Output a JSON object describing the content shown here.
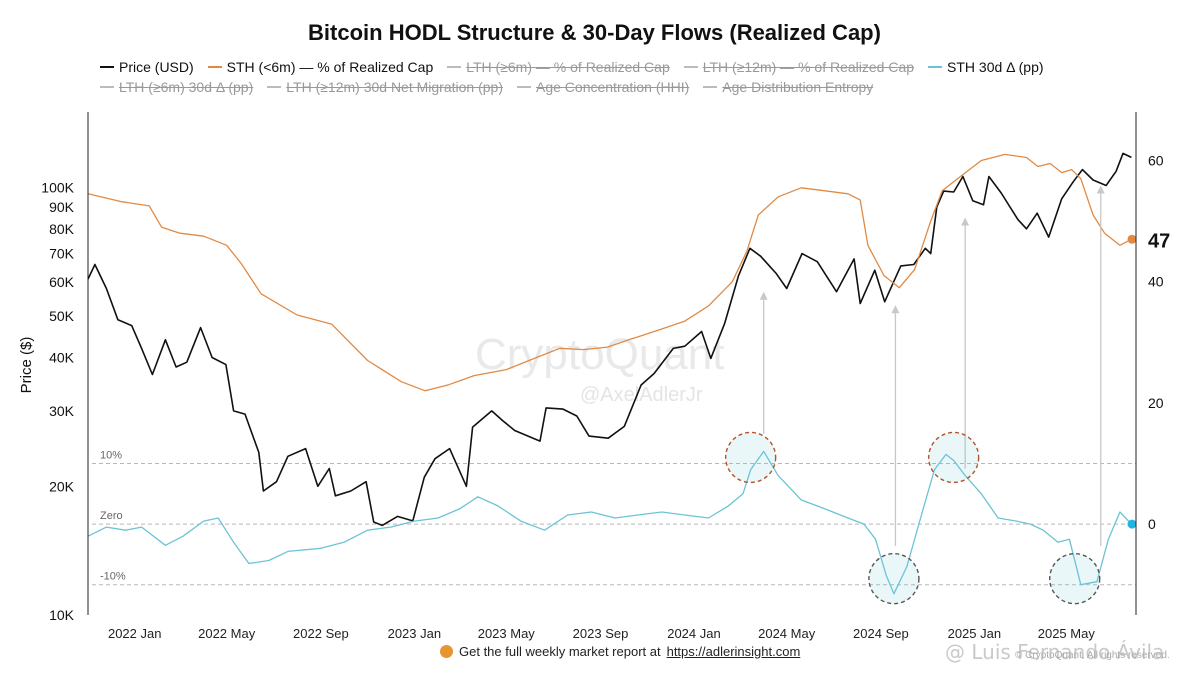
{
  "chart_data": {
    "type": "line",
    "title": "Bitcoin HODL Structure & 30-Day Flows (Realized Cap)",
    "xlabel": "",
    "ylabel_left": "Price ($)",
    "ylabel_right": "",
    "x_ticks": [
      "2022 Jan",
      "2022 May",
      "2022 Sep",
      "2023 Jan",
      "2023 May",
      "2023 Sep",
      "2024 Jan",
      "2024 May",
      "2024 Sep",
      "2025 Jan",
      "2025 May"
    ],
    "x_range": [
      "2021-11-01",
      "2025-07-31"
    ],
    "y_left_scale": "log",
    "y_left_range": [
      10000,
      150000
    ],
    "y_left_ticks": [
      {
        "value": 10000,
        "label": "10K"
      },
      {
        "value": 20000,
        "label": "20K"
      },
      {
        "value": 30000,
        "label": "30K"
      },
      {
        "value": 40000,
        "label": "40K"
      },
      {
        "value": 50000,
        "label": "50K"
      },
      {
        "value": 60000,
        "label": "60K"
      },
      {
        "value": 70000,
        "label": "70K"
      },
      {
        "value": 80000,
        "label": "80K"
      },
      {
        "value": 90000,
        "label": "90K"
      },
      {
        "value": 100000,
        "label": "100K"
      }
    ],
    "y_right_range": [
      -15,
      68
    ],
    "y_right_ticks": [
      {
        "value": 0,
        "label": "0"
      },
      {
        "value": 20,
        "label": "20"
      },
      {
        "value": 40,
        "label": "40"
      },
      {
        "value": 60,
        "label": "60"
      }
    ],
    "reference_lines": [
      {
        "value": 10,
        "label": "10%"
      },
      {
        "value": 0,
        "label": "Zero"
      },
      {
        "value": -10,
        "label": "-10%"
      }
    ],
    "legend": [
      {
        "name": "Price (USD)",
        "color": "#111111",
        "visible": true
      },
      {
        "name": "STH (<6m) — % of Realized Cap",
        "color": "#e08a45",
        "visible": true
      },
      {
        "name": "LTH (≥6m) — % of Realized Cap",
        "color": "#999999",
        "visible": false
      },
      {
        "name": "LTH (≥12m) — % of Realized Cap",
        "color": "#999999",
        "visible": false
      },
      {
        "name": "STH 30d Δ (pp)",
        "color": "#6cc3d5",
        "visible": true
      },
      {
        "name": "LTH (≥6m) 30d Δ (pp)",
        "color": "#999999",
        "visible": false
      },
      {
        "name": "LTH (≥12m) 30d Net Migration (pp)",
        "color": "#999999",
        "visible": false
      },
      {
        "name": "Age Concentration (HHI)",
        "color": "#999999",
        "visible": false
      },
      {
        "name": "Age Distribution Entropy",
        "color": "#999999",
        "visible": false
      }
    ],
    "last_value_label": "47",
    "series": [
      {
        "name": "Price (USD)",
        "axis": "left",
        "x": [
          "2021-11-01",
          "2021-11-10",
          "2021-11-25",
          "2021-12-10",
          "2021-12-28",
          "2022-01-10",
          "2022-01-24",
          "2022-02-10",
          "2022-02-24",
          "2022-03-10",
          "2022-03-28",
          "2022-04-12",
          "2022-04-30",
          "2022-05-10",
          "2022-05-25",
          "2022-06-12",
          "2022-06-18",
          "2022-07-05",
          "2022-07-20",
          "2022-08-12",
          "2022-08-28",
          "2022-09-12",
          "2022-09-20",
          "2022-10-10",
          "2022-10-30",
          "2022-11-09",
          "2022-11-20",
          "2022-12-10",
          "2022-12-30",
          "2023-01-14",
          "2023-01-28",
          "2023-02-16",
          "2023-03-10",
          "2023-03-18",
          "2023-04-12",
          "2023-04-26",
          "2023-05-12",
          "2023-06-14",
          "2023-06-22",
          "2023-07-14",
          "2023-08-01",
          "2023-08-17",
          "2023-09-11",
          "2023-10-02",
          "2023-10-24",
          "2023-11-10",
          "2023-12-05",
          "2023-12-20",
          "2024-01-11",
          "2024-01-23",
          "2024-02-10",
          "2024-02-28",
          "2024-03-14",
          "2024-03-28",
          "2024-04-17",
          "2024-05-01",
          "2024-05-21",
          "2024-06-10",
          "2024-07-05",
          "2024-07-28",
          "2024-08-05",
          "2024-08-24",
          "2024-09-06",
          "2024-09-27",
          "2024-10-14",
          "2024-10-29",
          "2024-11-05",
          "2024-11-13",
          "2024-11-22",
          "2024-12-05",
          "2024-12-17",
          "2024-12-30",
          "2025-01-13",
          "2025-01-20",
          "2025-02-05",
          "2025-02-27",
          "2025-03-10",
          "2025-03-24",
          "2025-04-08",
          "2025-04-25",
          "2025-05-10",
          "2025-05-22",
          "2025-06-05",
          "2025-06-22",
          "2025-07-05",
          "2025-07-14",
          "2025-07-25"
        ],
        "values": [
          61000,
          66000,
          58000,
          49000,
          47500,
          42000,
          36500,
          44000,
          38000,
          39000,
          47000,
          40000,
          38500,
          30000,
          29500,
          24000,
          19500,
          20500,
          23500,
          24500,
          20000,
          22000,
          19000,
          19500,
          20500,
          16500,
          16200,
          17000,
          16600,
          21000,
          23200,
          24500,
          20000,
          27500,
          30000,
          28500,
          27000,
          25500,
          30500,
          30300,
          29200,
          26200,
          25900,
          27600,
          34500,
          36700,
          42000,
          42500,
          46000,
          39800,
          48000,
          62000,
          72000,
          69000,
          63000,
          58000,
          70000,
          67000,
          57000,
          68000,
          53500,
          64000,
          54000,
          65500,
          66000,
          72000,
          70000,
          90000,
          98000,
          97500,
          106000,
          93000,
          91000,
          106000,
          97000,
          84000,
          80000,
          87000,
          76500,
          94000,
          103000,
          110000,
          104000,
          101000,
          109000,
          120000,
          117500
        ]
      },
      {
        "name": "STH (<6m) — % of Realized Cap",
        "axis": "right",
        "x": [
          "2021-11-01",
          "2021-12-15",
          "2022-01-20",
          "2022-02-05",
          "2022-03-01",
          "2022-04-01",
          "2022-05-01",
          "2022-05-20",
          "2022-06-15",
          "2022-08-01",
          "2022-09-15",
          "2022-11-01",
          "2022-12-15",
          "2023-01-15",
          "2023-02-15",
          "2023-03-20",
          "2023-05-01",
          "2023-06-10",
          "2023-07-10",
          "2023-08-10",
          "2023-09-10",
          "2023-10-10",
          "2023-11-15",
          "2023-12-20",
          "2024-01-20",
          "2024-02-20",
          "2024-03-10",
          "2024-03-25",
          "2024-04-20",
          "2024-05-20",
          "2024-06-20",
          "2024-07-20",
          "2024-08-05",
          "2024-08-15",
          "2024-09-05",
          "2024-09-25",
          "2024-10-15",
          "2024-11-05",
          "2024-11-20",
          "2024-12-10",
          "2025-01-10",
          "2025-02-10",
          "2025-03-10",
          "2025-03-25",
          "2025-04-10",
          "2025-04-25",
          "2025-05-08",
          "2025-05-20",
          "2025-06-05",
          "2025-06-20",
          "2025-07-10",
          "2025-07-25"
        ],
        "values": [
          54.5,
          53.2,
          52.5,
          49.0,
          48.0,
          47.5,
          46.0,
          43.0,
          38.0,
          34.5,
          33.0,
          27.0,
          23.5,
          22.0,
          23.0,
          24.5,
          25.5,
          27.5,
          29.0,
          28.8,
          29.2,
          30.5,
          32.0,
          33.5,
          36.0,
          40.0,
          45.0,
          51.0,
          54.0,
          55.5,
          55.0,
          54.5,
          53.5,
          46.0,
          41.0,
          39.0,
          42.0,
          50.0,
          55.0,
          57.0,
          60.0,
          61.0,
          60.5,
          59.0,
          59.5,
          58.0,
          58.5,
          57.0,
          51.0,
          48.0,
          46.0,
          47.0
        ]
      },
      {
        "name": "STH 30d Δ (pp)",
        "axis": "right",
        "x": [
          "2021-11-01",
          "2021-11-25",
          "2021-12-20",
          "2022-01-10",
          "2022-02-10",
          "2022-03-05",
          "2022-04-01",
          "2022-04-20",
          "2022-05-10",
          "2022-05-30",
          "2022-06-25",
          "2022-07-20",
          "2022-09-01",
          "2022-10-01",
          "2022-11-01",
          "2022-12-01",
          "2023-01-01",
          "2023-02-01",
          "2023-03-01",
          "2023-03-25",
          "2023-04-20",
          "2023-05-20",
          "2023-06-20",
          "2023-07-20",
          "2023-08-20",
          "2023-09-20",
          "2023-10-20",
          "2023-11-20",
          "2023-12-20",
          "2024-01-20",
          "2024-02-15",
          "2024-03-05",
          "2024-03-15",
          "2024-04-01",
          "2024-04-20",
          "2024-05-20",
          "2024-06-20",
          "2024-07-20",
          "2024-08-10",
          "2024-08-25",
          "2024-09-08",
          "2024-09-18",
          "2024-10-05",
          "2024-10-25",
          "2024-11-10",
          "2024-11-25",
          "2024-12-05",
          "2024-12-20",
          "2025-01-10",
          "2025-02-01",
          "2025-02-25",
          "2025-03-15",
          "2025-04-01",
          "2025-04-20",
          "2025-05-05",
          "2025-05-20",
          "2025-06-10",
          "2025-06-25",
          "2025-07-10",
          "2025-07-25"
        ],
        "values": [
          -2.0,
          -0.5,
          -1.0,
          -0.5,
          -3.5,
          -2.0,
          0.5,
          1.0,
          -3.0,
          -6.5,
          -6.0,
          -4.5,
          -4.0,
          -3.0,
          -1.0,
          -0.5,
          0.5,
          1.0,
          2.5,
          4.5,
          3.0,
          0.5,
          -1.0,
          1.5,
          2.0,
          1.0,
          1.5,
          2.0,
          1.5,
          1.0,
          3.0,
          5.0,
          9.0,
          12.0,
          8.0,
          4.0,
          2.5,
          1.0,
          0.0,
          -2.5,
          -8.5,
          -11.5,
          -7.0,
          2.0,
          9.0,
          11.5,
          10.5,
          8.0,
          5.0,
          1.0,
          0.5,
          0.0,
          -1.0,
          -3.0,
          -2.5,
          -10.0,
          -9.5,
          -2.5,
          2.0,
          0.0
        ]
      }
    ],
    "annotations": {
      "circles": [
        {
          "x": "2024-03-15",
          "y": 11,
          "color": "#b5522a"
        },
        {
          "x": "2024-09-18",
          "y": -9,
          "color": "#555555"
        },
        {
          "x": "2024-12-05",
          "y": 11,
          "color": "#b5522a"
        },
        {
          "x": "2025-05-12",
          "y": -9,
          "color": "#555555"
        }
      ],
      "arrows": [
        {
          "x": "2024-04-01",
          "from_price": 26500,
          "to_price": 57000
        },
        {
          "x": "2024-09-20",
          "from_price": 14500,
          "to_price": 53000
        },
        {
          "x": "2024-12-20",
          "from_price": 22000,
          "to_price": 85000
        },
        {
          "x": "2025-06-15",
          "from_price": 14500,
          "to_price": 101000
        }
      ]
    }
  },
  "footer": {
    "text": "Get the full weekly market report at",
    "link": "https://adlerinsight.com"
  },
  "watermark": {
    "brand": "CryptoQuant",
    "handle": "@AxelAdlerJr"
  },
  "attribution": {
    "name": "@ Luis Fernando Ávila",
    "copyright": "© CryptoQuant. All rights reserved."
  },
  "colors": {
    "price": "#111111",
    "sth": "#e08a45",
    "sth_delta": "#6cc3d5",
    "grid_dash": "#bbbbbb",
    "footer_dot": "#e6952f"
  }
}
